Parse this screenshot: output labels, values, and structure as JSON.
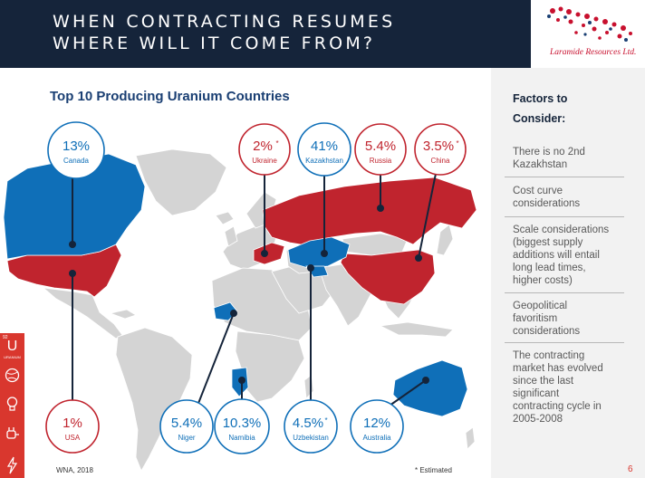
{
  "header": {
    "title_line1": "WHEN CONTRACTING RESUMES",
    "title_line2": "WHERE WILL IT COME FROM?",
    "logo_text": "Laramide Resources Ltd."
  },
  "chart_title": "Top 10 Producing Uranium Countries",
  "footer": {
    "source": "WNA, 2018",
    "estimated": "* Estimated",
    "page_number": "6"
  },
  "left_icons": {
    "element_number": "92",
    "element_symbol": "U",
    "element_name": "URANIUM"
  },
  "countries": {
    "canada": {
      "value": "13%",
      "name": "Canada",
      "color": "#0f6fb8"
    },
    "ukraine": {
      "value": "2%",
      "est": "*",
      "name": "Ukraine",
      "color": "#c0242e"
    },
    "kazakhstan": {
      "value": "41%",
      "name": "Kazakhstan",
      "color": "#0f6fb8"
    },
    "russia": {
      "value": "5.4%",
      "name": "Russia",
      "color": "#c0242e"
    },
    "china": {
      "value": "3.5%",
      "est": "*",
      "name": "China",
      "color": "#c0242e"
    },
    "usa": {
      "value": "1%",
      "name": "USA",
      "color": "#c0242e"
    },
    "niger": {
      "value": "5.4%",
      "name": "Niger",
      "color": "#0f6fb8"
    },
    "namibia": {
      "value": "10.3%",
      "name": "Namibia",
      "color": "#0f6fb8"
    },
    "uzbekistan": {
      "value": "4.5%",
      "est": "*",
      "name": "Uzbekistan",
      "color": "#0f6fb8"
    },
    "australia": {
      "value": "12%",
      "name": "Australia",
      "color": "#0f6fb8"
    }
  },
  "sidebar": {
    "heading_line1": "Factors to",
    "heading_line2": "Consider:",
    "factors": [
      [
        "There is no 2nd",
        "Kazakhstan"
      ],
      [
        "Cost curve",
        "considerations"
      ],
      [
        "Scale considerations",
        "(biggest supply",
        "additions will entail",
        "long lead times,",
        "higher costs)"
      ],
      [
        "Geopolitical",
        "favoritism",
        "considerations"
      ],
      [
        "The contracting",
        "market has evolved",
        "since the last",
        "significant",
        "contracting cycle in",
        "2005-2008"
      ]
    ]
  },
  "colors": {
    "navy": "#15243a",
    "blue": "#0f6fb8",
    "red": "#c0242e",
    "gray_land": "#d4d4d4",
    "title_blue": "#1a3f73"
  }
}
